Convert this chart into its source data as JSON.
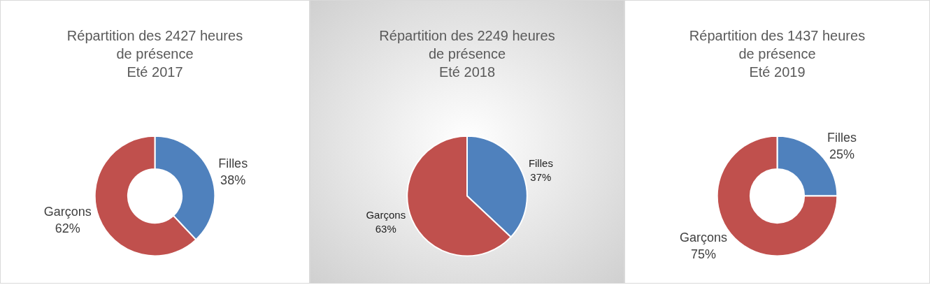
{
  "chart_data": [
    {
      "type": "donut",
      "title": "Répartition des 2427 heures\nde présence\nEté 2017",
      "categories": [
        "Filles",
        "Garçons"
      ],
      "values": [
        38,
        62
      ],
      "value_labels": [
        "38%",
        "62%"
      ],
      "colors": [
        "#4f81bd",
        "#c0504d"
      ]
    },
    {
      "type": "pie",
      "title": "Répartition des 2249 heures\nde présence\nEté 2018",
      "categories": [
        "Filles",
        "Garçons"
      ],
      "values": [
        37,
        63
      ],
      "value_labels": [
        "37%",
        "63%"
      ],
      "colors": [
        "#4f81bd",
        "#c0504d"
      ]
    },
    {
      "type": "donut",
      "title": "Répartition des 1437 heures\nde présence\nEté 2019",
      "categories": [
        "Filles",
        "Garçons"
      ],
      "values": [
        25,
        75
      ],
      "value_labels": [
        "25%",
        "75%"
      ],
      "colors": [
        "#4f81bd",
        "#c0504d"
      ]
    }
  ]
}
